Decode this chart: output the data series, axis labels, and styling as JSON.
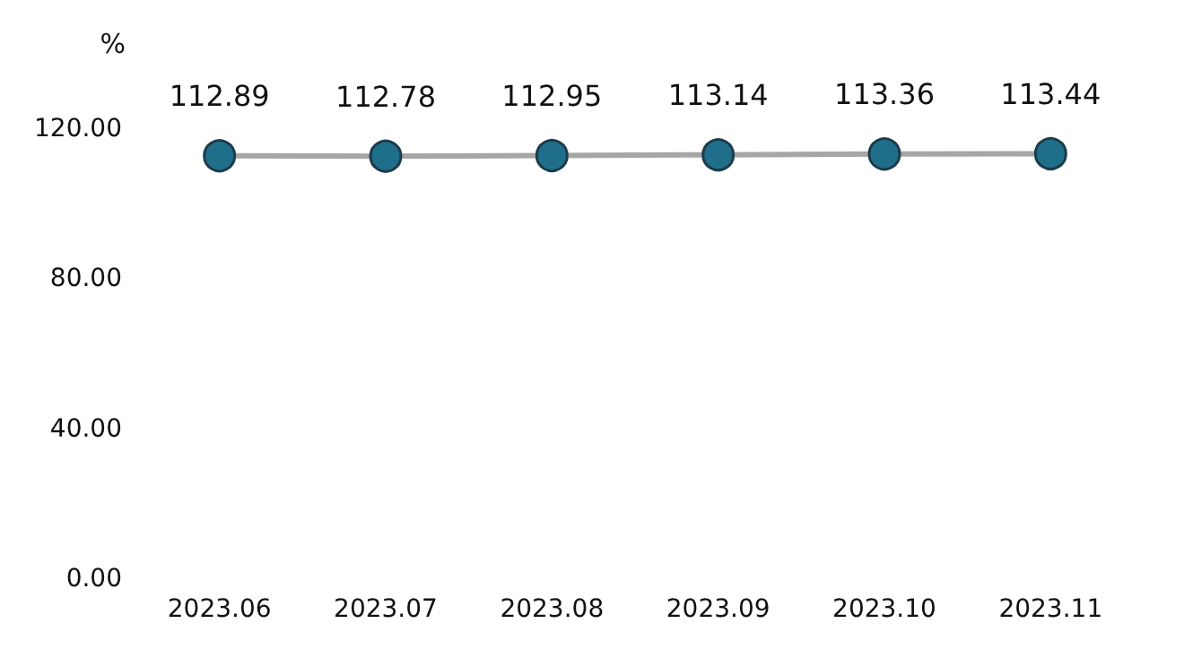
{
  "chart_data": {
    "type": "line",
    "ylabel": "%",
    "categories": [
      "2023.06",
      "2023.07",
      "2023.08",
      "2023.09",
      "2023.10",
      "2023.11"
    ],
    "series": [
      {
        "color": "#a6a6a6",
        "values": [
          112.89,
          112.78,
          112.95,
          113.14,
          113.36,
          113.44
        ]
      }
    ],
    "ylim": [
      0,
      120
    ],
    "yticks": [
      {
        "value": 0,
        "label": "0.00"
      },
      {
        "value": 40,
        "label": "40.00"
      },
      {
        "value": 80,
        "label": "80.00"
      },
      {
        "value": 120,
        "label": "120.00"
      }
    ],
    "grid": false,
    "marker": "circle",
    "line_style": "solid",
    "data_labels": true
  }
}
